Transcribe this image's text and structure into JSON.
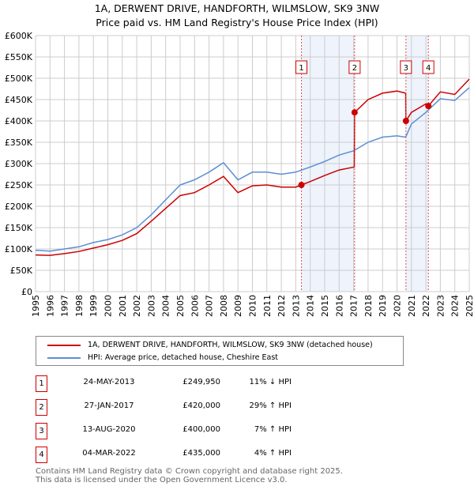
{
  "chart_data": {
    "type": "line",
    "title": "1A, DERWENT DRIVE, HANDFORTH, WILMSLOW, SK9 3NW",
    "subtitle": "Price paid vs. HM Land Registry's House Price Index (HPI)",
    "xlim": [
      1995,
      2025
    ],
    "ylim": [
      0,
      600000
    ],
    "yticks": [
      0,
      50000,
      100000,
      150000,
      200000,
      250000,
      300000,
      350000,
      400000,
      450000,
      500000,
      550000,
      600000
    ],
    "ytick_labels": [
      "£0",
      "£50K",
      "£100K",
      "£150K",
      "£200K",
      "£250K",
      "£300K",
      "£350K",
      "£400K",
      "£450K",
      "£500K",
      "£550K",
      "£600K"
    ],
    "xticks": [
      "1995",
      "1996",
      "1997",
      "1998",
      "1999",
      "2000",
      "2001",
      "2002",
      "2003",
      "2004",
      "2005",
      "2006",
      "2007",
      "2008",
      "2009",
      "2010",
      "2011",
      "2012",
      "2013",
      "2014",
      "2015",
      "2016",
      "2017",
      "2018",
      "2019",
      "2020",
      "2021",
      "2022",
      "2023",
      "2024",
      "2025"
    ],
    "grid": true,
    "series": [
      {
        "name": "1A, DERWENT DRIVE, HANDFORTH, WILMSLOW, SK9 3NW (detached house)",
        "color": "#cc0000",
        "x": [
          1995,
          1996,
          1997,
          1998,
          1999,
          2000,
          2001,
          2002,
          2003,
          2004,
          2005,
          2006,
          2007,
          2008,
          2009,
          2010,
          2011,
          2012,
          2013,
          2013.4,
          2014,
          2015,
          2016,
          2017.05,
          2017.07,
          2018,
          2019,
          2020,
          2020.6,
          2020.62,
          2021,
          2022,
          2022.17,
          2023,
          2024,
          2025
        ],
        "y": [
          86000,
          85000,
          89000,
          94000,
          102000,
          110000,
          120000,
          136000,
          165000,
          195000,
          225000,
          232000,
          250000,
          270000,
          232000,
          248000,
          250000,
          245000,
          245000,
          249950,
          258000,
          272000,
          285000,
          292000,
          420000,
          450000,
          465000,
          470000,
          465000,
          400000,
          420000,
          440000,
          435000,
          468000,
          462000,
          498000
        ]
      },
      {
        "name": "HPI: Average price, detached house, Cheshire East",
        "color": "#5b8fd4",
        "x": [
          1995,
          1996,
          1997,
          1998,
          1999,
          2000,
          2001,
          2002,
          2003,
          2004,
          2005,
          2006,
          2007,
          2008,
          2009,
          2010,
          2011,
          2012,
          2013,
          2014,
          2015,
          2016,
          2017,
          2018,
          2019,
          2020,
          2020.6,
          2021,
          2022,
          2023,
          2024,
          2025
        ],
        "y": [
          97000,
          95000,
          100000,
          105000,
          115000,
          122000,
          133000,
          150000,
          180000,
          215000,
          250000,
          262000,
          280000,
          302000,
          262000,
          280000,
          280000,
          275000,
          280000,
          292000,
          305000,
          320000,
          330000,
          350000,
          362000,
          365000,
          362000,
          393000,
          420000,
          452000,
          448000,
          478000
        ]
      }
    ],
    "sales": [
      {
        "id": "1",
        "x": 2013.39,
        "price": 249950,
        "date": "24-MAY-2013",
        "price_label": "£249,950",
        "hpi": "11% ↓ HPI"
      },
      {
        "id": "2",
        "x": 2017.07,
        "price": 420000,
        "date": "27-JAN-2017",
        "price_label": "£420,000",
        "hpi": "29% ↑ HPI"
      },
      {
        "id": "3",
        "x": 2020.62,
        "price": 400000,
        "date": "13-AUG-2020",
        "price_label": "£400,000",
        "hpi": "7% ↑ HPI"
      },
      {
        "id": "4",
        "x": 2022.17,
        "price": 435000,
        "date": "04-MAR-2022",
        "price_label": "£435,000",
        "hpi": "4% ↑ HPI"
      }
    ],
    "legend_position": "below"
  },
  "footer": {
    "line1": "Contains HM Land Registry data © Crown copyright and database right 2025.",
    "line2": "This data is licensed under the Open Government Licence v3.0."
  }
}
